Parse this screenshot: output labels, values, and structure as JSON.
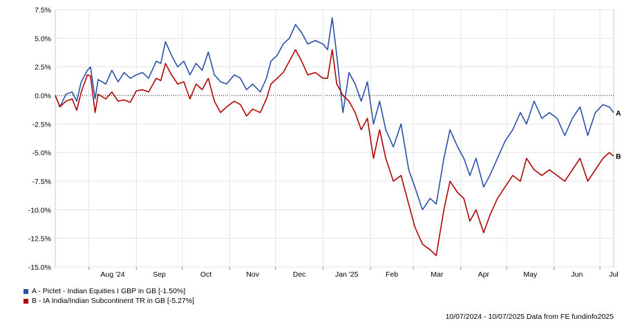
{
  "chart_data": {
    "type": "line",
    "title": "",
    "xlabel": "",
    "ylabel": "",
    "ylim": [
      -15.0,
      7.5
    ],
    "y_ticks": [
      "7.5%",
      "5.0%",
      "2.5%",
      "0.0%",
      "-2.5%",
      "-5.0%",
      "-7.5%",
      "-10.0%",
      "-12.5%",
      "-15.0%"
    ],
    "x_tick_labels": [
      "Aug '24",
      "Sep",
      "Oct",
      "Nov",
      "Dec",
      "Jan '25",
      "Feb",
      "Mar",
      "Apr",
      "May",
      "Jun",
      "Jul"
    ],
    "x_range": [
      "2024-07-10",
      "2025-07-10"
    ],
    "grid": true,
    "zero_line": "dotted",
    "series": [
      {
        "name": "A - Pictet - Indian Equities I GBP in GB [-1.50%]",
        "end_label": "A",
        "color": "#2a4fa8",
        "points": [
          [
            "2024-07-10",
            0.0
          ],
          [
            "2024-07-13",
            -1.0
          ],
          [
            "2024-07-17",
            0.1
          ],
          [
            "2024-07-21",
            0.3
          ],
          [
            "2024-07-24",
            -0.5
          ],
          [
            "2024-07-27",
            1.2
          ],
          [
            "2024-07-31",
            2.2
          ],
          [
            "2024-08-02",
            2.5
          ],
          [
            "2024-08-05",
            -0.3
          ],
          [
            "2024-08-07",
            1.4
          ],
          [
            "2024-08-12",
            1.0
          ],
          [
            "2024-08-16",
            2.2
          ],
          [
            "2024-08-20",
            1.2
          ],
          [
            "2024-08-24",
            2.0
          ],
          [
            "2024-08-28",
            1.5
          ],
          [
            "2024-09-01",
            1.8
          ],
          [
            "2024-09-05",
            2.0
          ],
          [
            "2024-09-09",
            1.5
          ],
          [
            "2024-09-14",
            3.0
          ],
          [
            "2024-09-17",
            2.8
          ],
          [
            "2024-09-20",
            4.7
          ],
          [
            "2024-09-24",
            3.5
          ],
          [
            "2024-09-28",
            2.5
          ],
          [
            "2024-10-02",
            3.0
          ],
          [
            "2024-10-06",
            1.8
          ],
          [
            "2024-10-10",
            2.8
          ],
          [
            "2024-10-14",
            2.2
          ],
          [
            "2024-10-18",
            3.8
          ],
          [
            "2024-10-22",
            1.8
          ],
          [
            "2024-10-26",
            1.2
          ],
          [
            "2024-10-30",
            1.0
          ],
          [
            "2024-11-04",
            1.8
          ],
          [
            "2024-11-08",
            1.5
          ],
          [
            "2024-11-12",
            0.5
          ],
          [
            "2024-11-16",
            1.0
          ],
          [
            "2024-11-21",
            0.3
          ],
          [
            "2024-11-25",
            1.5
          ],
          [
            "2024-11-28",
            3.0
          ],
          [
            "2024-12-02",
            3.5
          ],
          [
            "2024-12-06",
            4.5
          ],
          [
            "2024-12-10",
            5.0
          ],
          [
            "2024-12-14",
            6.2
          ],
          [
            "2024-12-18",
            5.5
          ],
          [
            "2024-12-22",
            4.5
          ],
          [
            "2024-12-27",
            4.8
          ],
          [
            "2025-01-01",
            4.5
          ],
          [
            "2025-01-04",
            4.0
          ],
          [
            "2025-01-07",
            6.8
          ],
          [
            "2025-01-10",
            3.5
          ],
          [
            "2025-01-14",
            -1.5
          ],
          [
            "2025-01-18",
            2.0
          ],
          [
            "2025-01-22",
            1.0
          ],
          [
            "2025-01-26",
            -0.5
          ],
          [
            "2025-01-30",
            1.2
          ],
          [
            "2025-02-03",
            -2.5
          ],
          [
            "2025-02-07",
            -0.5
          ],
          [
            "2025-02-11",
            -3.0
          ],
          [
            "2025-02-16",
            -4.5
          ],
          [
            "2025-02-21",
            -2.5
          ],
          [
            "2025-02-26",
            -6.5
          ],
          [
            "2025-03-02",
            -8.0
          ],
          [
            "2025-03-07",
            -10.0
          ],
          [
            "2025-03-12",
            -9.0
          ],
          [
            "2025-03-16",
            -9.5
          ],
          [
            "2025-03-21",
            -5.5
          ],
          [
            "2025-03-25",
            -3.0
          ],
          [
            "2025-03-30",
            -4.5
          ],
          [
            "2025-04-03",
            -5.5
          ],
          [
            "2025-04-07",
            -7.0
          ],
          [
            "2025-04-11",
            -5.5
          ],
          [
            "2025-04-16",
            -8.0
          ],
          [
            "2025-04-20",
            -7.0
          ],
          [
            "2025-04-25",
            -5.5
          ],
          [
            "2025-04-30",
            -4.0
          ],
          [
            "2025-05-05",
            -3.0
          ],
          [
            "2025-05-10",
            -1.5
          ],
          [
            "2025-05-14",
            -2.5
          ],
          [
            "2025-05-19",
            -0.5
          ],
          [
            "2025-05-24",
            -2.0
          ],
          [
            "2025-05-29",
            -1.5
          ],
          [
            "2025-06-03",
            -2.0
          ],
          [
            "2025-06-08",
            -3.5
          ],
          [
            "2025-06-13",
            -2.0
          ],
          [
            "2025-06-18",
            -1.0
          ],
          [
            "2025-06-23",
            -3.5
          ],
          [
            "2025-06-28",
            -1.5
          ],
          [
            "2025-07-03",
            -0.8
          ],
          [
            "2025-07-07",
            -1.0
          ],
          [
            "2025-07-10",
            -1.5
          ]
        ]
      },
      {
        "name": "B - IA India/Indian Subcontinent TR in GB [-5.27%]",
        "end_label": "B",
        "color": "#b00000",
        "points": [
          [
            "2024-07-10",
            0.0
          ],
          [
            "2024-07-13",
            -1.0
          ],
          [
            "2024-07-17",
            -0.5
          ],
          [
            "2024-07-21",
            -0.3
          ],
          [
            "2024-07-24",
            -1.3
          ],
          [
            "2024-07-27",
            0.3
          ],
          [
            "2024-07-31",
            1.8
          ],
          [
            "2024-08-02",
            1.7
          ],
          [
            "2024-08-05",
            -1.5
          ],
          [
            "2024-08-07",
            0.1
          ],
          [
            "2024-08-12",
            -0.3
          ],
          [
            "2024-08-16",
            0.3
          ],
          [
            "2024-08-20",
            -0.5
          ],
          [
            "2024-08-24",
            -0.4
          ],
          [
            "2024-08-28",
            -0.6
          ],
          [
            "2024-09-01",
            0.4
          ],
          [
            "2024-09-05",
            0.5
          ],
          [
            "2024-09-09",
            0.3
          ],
          [
            "2024-09-14",
            1.5
          ],
          [
            "2024-09-17",
            1.3
          ],
          [
            "2024-09-20",
            2.8
          ],
          [
            "2024-09-24",
            1.8
          ],
          [
            "2024-09-28",
            1.0
          ],
          [
            "2024-10-02",
            1.2
          ],
          [
            "2024-10-06",
            -0.3
          ],
          [
            "2024-10-10",
            1.0
          ],
          [
            "2024-10-14",
            0.5
          ],
          [
            "2024-10-18",
            1.5
          ],
          [
            "2024-10-22",
            -0.5
          ],
          [
            "2024-10-26",
            -1.5
          ],
          [
            "2024-10-30",
            -1.0
          ],
          [
            "2024-11-04",
            -0.5
          ],
          [
            "2024-11-08",
            -0.8
          ],
          [
            "2024-11-12",
            -1.8
          ],
          [
            "2024-11-16",
            -1.2
          ],
          [
            "2024-11-21",
            -1.5
          ],
          [
            "2024-11-25",
            -0.3
          ],
          [
            "2024-11-28",
            1.0
          ],
          [
            "2024-12-02",
            1.5
          ],
          [
            "2024-12-06",
            2.0
          ],
          [
            "2024-12-10",
            3.0
          ],
          [
            "2024-12-14",
            4.0
          ],
          [
            "2024-12-18",
            3.0
          ],
          [
            "2024-12-22",
            1.8
          ],
          [
            "2024-12-27",
            2.0
          ],
          [
            "2025-01-01",
            1.5
          ],
          [
            "2025-01-04",
            1.5
          ],
          [
            "2025-01-07",
            4.0
          ],
          [
            "2025-01-10",
            1.0
          ],
          [
            "2025-01-14",
            0.0
          ],
          [
            "2025-01-18",
            -0.5
          ],
          [
            "2025-01-22",
            -1.5
          ],
          [
            "2025-01-26",
            -3.0
          ],
          [
            "2025-01-30",
            -2.0
          ],
          [
            "2025-02-03",
            -5.5
          ],
          [
            "2025-02-07",
            -3.0
          ],
          [
            "2025-02-11",
            -5.5
          ],
          [
            "2025-02-16",
            -7.5
          ],
          [
            "2025-02-21",
            -7.0
          ],
          [
            "2025-02-26",
            -9.5
          ],
          [
            "2025-03-02",
            -11.5
          ],
          [
            "2025-03-07",
            -13.0
          ],
          [
            "2025-03-12",
            -13.5
          ],
          [
            "2025-03-16",
            -14.0
          ],
          [
            "2025-03-21",
            -10.0
          ],
          [
            "2025-03-25",
            -7.5
          ],
          [
            "2025-03-30",
            -8.5
          ],
          [
            "2025-04-03",
            -9.0
          ],
          [
            "2025-04-07",
            -11.0
          ],
          [
            "2025-04-11",
            -10.0
          ],
          [
            "2025-04-16",
            -12.0
          ],
          [
            "2025-04-20",
            -10.5
          ],
          [
            "2025-04-25",
            -9.0
          ],
          [
            "2025-04-30",
            -8.0
          ],
          [
            "2025-05-05",
            -7.0
          ],
          [
            "2025-05-10",
            -7.5
          ],
          [
            "2025-05-14",
            -5.5
          ],
          [
            "2025-05-19",
            -6.5
          ],
          [
            "2025-05-24",
            -7.0
          ],
          [
            "2025-05-29",
            -6.5
          ],
          [
            "2025-06-03",
            -7.0
          ],
          [
            "2025-06-08",
            -7.5
          ],
          [
            "2025-06-13",
            -6.5
          ],
          [
            "2025-06-18",
            -5.5
          ],
          [
            "2025-06-23",
            -7.5
          ],
          [
            "2025-06-28",
            -6.5
          ],
          [
            "2025-07-03",
            -5.5
          ],
          [
            "2025-07-07",
            -5.0
          ],
          [
            "2025-07-10",
            -5.3
          ]
        ]
      }
    ]
  },
  "legend": {
    "a_label": "A - Pictet - Indian Equities I GBP in GB [-1.50%]",
    "b_label": "B - IA India/Indian Subcontinent TR in GB [-5.27%]"
  },
  "footer": "10/07/2024 - 10/07/2025 Data from FE fundinfo2025"
}
